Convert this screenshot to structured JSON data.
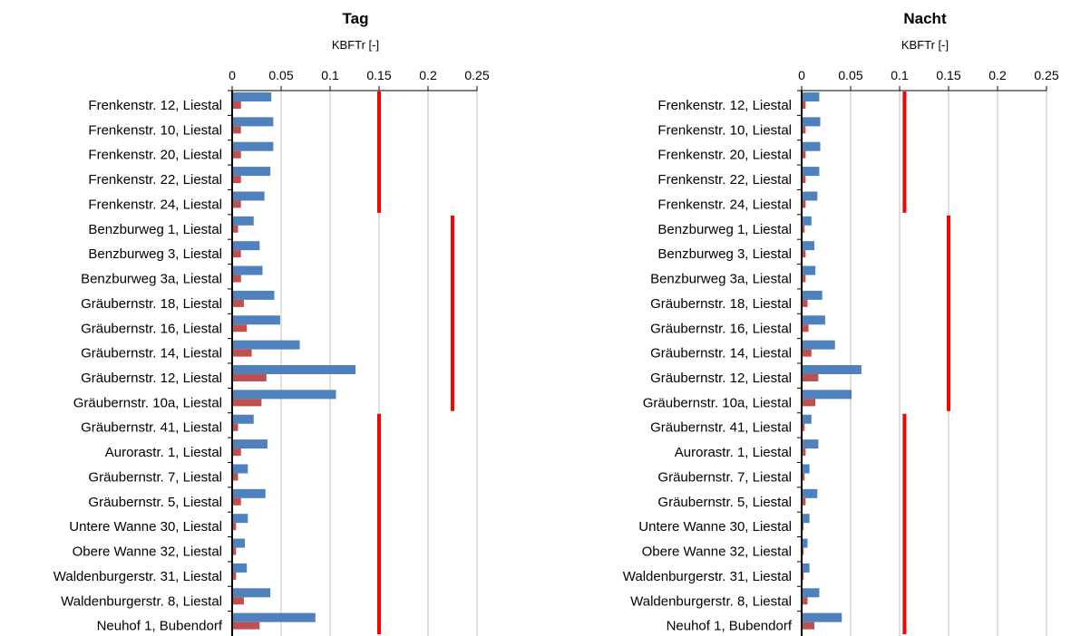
{
  "colors": {
    "series_a": "#4f81bd",
    "series_b": "#c0504d",
    "limit": "#ff0000",
    "grid": "#c0c0c0"
  },
  "categories": [
    "Frenkenstr. 12, Liestal",
    "Frenkenstr. 10, Liestal",
    "Frenkenstr. 20, Liestal",
    "Frenkenstr. 22, Liestal",
    "Frenkenstr. 24, Liestal",
    "Benzburweg 1, Liestal",
    "Benzburweg 3, Liestal",
    "Benzburweg 3a, Liestal",
    "Gräubernstr. 18, Liestal",
    "Gräubernstr. 16, Liestal",
    "Gräubernstr. 14, Liestal",
    "Gräubernstr. 12, Liestal",
    "Gräubernstr. 10a, Liestal",
    "Gräubernstr. 41, Liestal",
    "Aurorastr. 1, Liestal",
    "Gräubernstr. 7, Liestal",
    "Gräubernstr. 5, Liestal",
    "Untere Wanne 30, Liestal",
    "Obere Wanne 32, Liestal",
    "Waldenburgerstr. 31, Liestal",
    "Waldenburgerstr. 8, Liestal",
    "Neuhof 1, Bubendorf"
  ],
  "chart_data": [
    {
      "type": "bar",
      "orientation": "horizontal",
      "title": "Tag",
      "xlabel": "KBFTr [-]",
      "xlim": [
        0,
        0.25
      ],
      "ticks": [
        "0",
        "0.05",
        "0.1",
        "0.15",
        "0.2",
        "0.25"
      ],
      "grid": true,
      "series": [
        {
          "values": [
            0.04,
            0.042,
            0.042,
            0.039,
            0.033,
            0.022,
            0.028,
            0.031,
            0.043,
            0.049,
            0.069,
            0.126,
            0.106,
            0.022,
            0.036,
            0.016,
            0.034,
            0.016,
            0.013,
            0.015,
            0.039,
            0.085
          ]
        },
        {
          "values": [
            0.009,
            0.009,
            0.009,
            0.009,
            0.009,
            0.006,
            0.009,
            0.009,
            0.012,
            0.015,
            0.02,
            0.035,
            0.03,
            0.006,
            0.009,
            0.006,
            0.009,
            0.004,
            0.004,
            0.004,
            0.012,
            0.028
          ]
        }
      ],
      "limits": [
        {
          "value": 0.15,
          "from": 0,
          "to": 4
        },
        {
          "value": 0.225,
          "from": 5,
          "to": 12
        },
        {
          "value": 0.15,
          "from": 13,
          "to": 21
        }
      ]
    },
    {
      "type": "bar",
      "orientation": "horizontal",
      "title": "Nacht",
      "xlabel": "KBFTr [-]",
      "xlim": [
        0,
        0.25
      ],
      "ticks": [
        "0",
        "0.05",
        "0.1",
        "0.15",
        "0.2",
        "0.25"
      ],
      "grid": true,
      "series": [
        {
          "values": [
            0.018,
            0.019,
            0.019,
            0.018,
            0.016,
            0.01,
            0.013,
            0.014,
            0.021,
            0.024,
            0.034,
            0.061,
            0.051,
            0.01,
            0.017,
            0.008,
            0.016,
            0.008,
            0.006,
            0.008,
            0.018,
            0.041
          ]
        },
        {
          "values": [
            0.004,
            0.004,
            0.004,
            0.004,
            0.004,
            0.003,
            0.004,
            0.004,
            0.006,
            0.007,
            0.01,
            0.017,
            0.014,
            0.003,
            0.004,
            0.003,
            0.004,
            0.002,
            0.002,
            0.002,
            0.006,
            0.013
          ]
        }
      ],
      "limits": [
        {
          "value": 0.105,
          "from": 0,
          "to": 4
        },
        {
          "value": 0.15,
          "from": 5,
          "to": 12
        },
        {
          "value": 0.105,
          "from": 13,
          "to": 21
        }
      ]
    }
  ]
}
